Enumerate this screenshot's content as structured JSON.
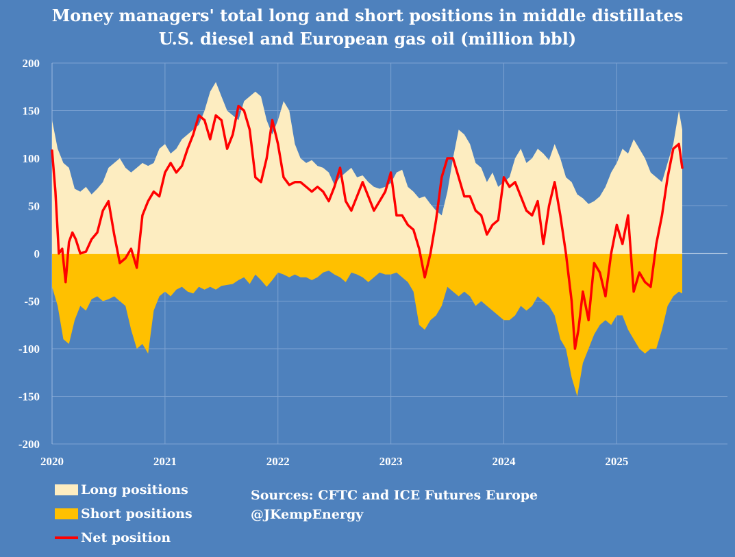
{
  "chart_data": {
    "type": "area",
    "title": "Money managers' total long and short positions in middle distillates",
    "subtitle": "U.S. diesel and European gas oil  (million bbl)",
    "xlabel": "",
    "ylabel": "",
    "xlim": [
      2020.0,
      2025.98
    ],
    "ylim": [
      -200,
      200
    ],
    "yticks": [
      "200",
      "150",
      "100",
      "50",
      "0",
      "-50",
      "-100",
      "-150",
      "-200"
    ],
    "xticks": [
      "2020",
      "2021",
      "2022",
      "2023",
      "2024",
      "2025"
    ],
    "grid": true,
    "legend_position": "bottom-left",
    "colors": {
      "long": "#fdedc1",
      "short": "#ffc000",
      "net": "#ff0000",
      "background": "#4e81bd"
    },
    "series": [
      {
        "name": "Long positions",
        "x": [
          2020.0,
          2020.05,
          2020.1,
          2020.15,
          2020.2,
          2020.25,
          2020.3,
          2020.35,
          2020.4,
          2020.45,
          2020.5,
          2020.55,
          2020.6,
          2020.65,
          2020.7,
          2020.75,
          2020.8,
          2020.85,
          2020.9,
          2020.95,
          2021.0,
          2021.05,
          2021.1,
          2021.15,
          2021.2,
          2021.25,
          2021.3,
          2021.35,
          2021.4,
          2021.45,
          2021.5,
          2021.55,
          2021.6,
          2021.65,
          2021.7,
          2021.75,
          2021.8,
          2021.85,
          2021.9,
          2021.95,
          2022.0,
          2022.05,
          2022.1,
          2022.15,
          2022.2,
          2022.25,
          2022.3,
          2022.35,
          2022.4,
          2022.45,
          2022.5,
          2022.55,
          2022.6,
          2022.65,
          2022.7,
          2022.75,
          2022.8,
          2022.85,
          2022.9,
          2022.95,
          2023.0,
          2023.05,
          2023.1,
          2023.15,
          2023.2,
          2023.25,
          2023.3,
          2023.35,
          2023.4,
          2023.45,
          2023.5,
          2023.55,
          2023.6,
          2023.65,
          2023.7,
          2023.75,
          2023.8,
          2023.85,
          2023.9,
          2023.95,
          2024.0,
          2024.05,
          2024.1,
          2024.15,
          2024.2,
          2024.25,
          2024.3,
          2024.35,
          2024.4,
          2024.45,
          2024.5,
          2024.55,
          2024.6,
          2024.65,
          2024.7,
          2024.75,
          2024.8,
          2024.85,
          2024.9,
          2024.95,
          2025.0,
          2025.05,
          2025.1,
          2025.15,
          2025.2,
          2025.25,
          2025.3,
          2025.35,
          2025.4,
          2025.45,
          2025.5,
          2025.55,
          2025.58
        ],
        "values": [
          140,
          110,
          95,
          90,
          68,
          65,
          70,
          62,
          68,
          75,
          90,
          95,
          100,
          90,
          85,
          90,
          95,
          92,
          95,
          110,
          115,
          105,
          110,
          120,
          125,
          130,
          135,
          150,
          170,
          180,
          165,
          150,
          145,
          140,
          160,
          165,
          170,
          165,
          140,
          125,
          140,
          160,
          150,
          115,
          100,
          95,
          98,
          92,
          90,
          85,
          72,
          80,
          85,
          90,
          80,
          82,
          75,
          70,
          68,
          70,
          74,
          85,
          88,
          70,
          65,
          58,
          60,
          52,
          45,
          40,
          65,
          100,
          130,
          125,
          115,
          95,
          90,
          75,
          85,
          70,
          75,
          80,
          100,
          110,
          95,
          100,
          110,
          105,
          98,
          115,
          100,
          80,
          75,
          62,
          58,
          52,
          55,
          60,
          70,
          85,
          95,
          110,
          105,
          120,
          110,
          100,
          85,
          80,
          75,
          95,
          115,
          150,
          130
        ]
      },
      {
        "name": "Short positions",
        "x": [
          2020.0,
          2020.05,
          2020.1,
          2020.15,
          2020.2,
          2020.25,
          2020.3,
          2020.35,
          2020.4,
          2020.45,
          2020.5,
          2020.55,
          2020.6,
          2020.65,
          2020.7,
          2020.75,
          2020.8,
          2020.85,
          2020.9,
          2020.95,
          2021.0,
          2021.05,
          2021.1,
          2021.15,
          2021.2,
          2021.25,
          2021.3,
          2021.35,
          2021.4,
          2021.45,
          2021.5,
          2021.55,
          2021.6,
          2021.65,
          2021.7,
          2021.75,
          2021.8,
          2021.85,
          2021.9,
          2021.95,
          2022.0,
          2022.05,
          2022.1,
          2022.15,
          2022.2,
          2022.25,
          2022.3,
          2022.35,
          2022.4,
          2022.45,
          2022.5,
          2022.55,
          2022.6,
          2022.65,
          2022.7,
          2022.75,
          2022.8,
          2022.85,
          2022.9,
          2022.95,
          2023.0,
          2023.05,
          2023.1,
          2023.15,
          2023.2,
          2023.25,
          2023.3,
          2023.35,
          2023.4,
          2023.45,
          2023.5,
          2023.55,
          2023.6,
          2023.65,
          2023.7,
          2023.75,
          2023.8,
          2023.85,
          2023.9,
          2023.95,
          2024.0,
          2024.05,
          2024.1,
          2024.15,
          2024.2,
          2024.25,
          2024.3,
          2024.35,
          2024.4,
          2024.45,
          2024.5,
          2024.55,
          2024.6,
          2024.65,
          2024.7,
          2024.75,
          2024.8,
          2024.85,
          2024.9,
          2024.95,
          2025.0,
          2025.05,
          2025.1,
          2025.15,
          2025.2,
          2025.25,
          2025.3,
          2025.35,
          2025.4,
          2025.45,
          2025.5,
          2025.55,
          2025.58
        ],
        "values": [
          -35,
          -55,
          -90,
          -95,
          -70,
          -55,
          -60,
          -48,
          -45,
          -50,
          -48,
          -45,
          -50,
          -55,
          -80,
          -100,
          -95,
          -105,
          -60,
          -45,
          -40,
          -45,
          -38,
          -35,
          -40,
          -42,
          -35,
          -38,
          -35,
          -38,
          -34,
          -33,
          -32,
          -28,
          -25,
          -32,
          -22,
          -28,
          -35,
          -28,
          -20,
          -22,
          -25,
          -22,
          -25,
          -25,
          -28,
          -25,
          -20,
          -18,
          -22,
          -25,
          -30,
          -20,
          -22,
          -25,
          -30,
          -25,
          -20,
          -22,
          -22,
          -20,
          -25,
          -30,
          -40,
          -75,
          -80,
          -70,
          -65,
          -55,
          -35,
          -40,
          -45,
          -40,
          -45,
          -55,
          -50,
          -55,
          -60,
          -65,
          -70,
          -70,
          -65,
          -55,
          -60,
          -55,
          -45,
          -50,
          -55,
          -65,
          -90,
          -100,
          -130,
          -150,
          -115,
          -100,
          -85,
          -75,
          -70,
          -75,
          -65,
          -65,
          -80,
          -90,
          -100,
          -105,
          -100,
          -100,
          -80,
          -55,
          -45,
          -40,
          -42
        ]
      },
      {
        "name": "Net position",
        "x": [
          2020.0,
          2020.03,
          2020.06,
          2020.09,
          2020.12,
          2020.15,
          2020.18,
          2020.21,
          2020.25,
          2020.3,
          2020.35,
          2020.4,
          2020.45,
          2020.5,
          2020.55,
          2020.6,
          2020.65,
          2020.7,
          2020.75,
          2020.8,
          2020.85,
          2020.9,
          2020.95,
          2021.0,
          2021.05,
          2021.1,
          2021.15,
          2021.2,
          2021.25,
          2021.3,
          2021.35,
          2021.4,
          2021.45,
          2021.5,
          2021.55,
          2021.6,
          2021.65,
          2021.7,
          2021.75,
          2021.8,
          2021.85,
          2021.9,
          2021.95,
          2022.0,
          2022.05,
          2022.1,
          2022.15,
          2022.2,
          2022.25,
          2022.3,
          2022.35,
          2022.4,
          2022.45,
          2022.5,
          2022.55,
          2022.6,
          2022.65,
          2022.7,
          2022.75,
          2022.8,
          2022.85,
          2022.9,
          2022.95,
          2023.0,
          2023.05,
          2023.1,
          2023.15,
          2023.2,
          2023.25,
          2023.3,
          2023.35,
          2023.4,
          2023.45,
          2023.5,
          2023.55,
          2023.6,
          2023.65,
          2023.7,
          2023.75,
          2023.8,
          2023.85,
          2023.9,
          2023.95,
          2024.0,
          2024.05,
          2024.1,
          2024.15,
          2024.2,
          2024.25,
          2024.3,
          2024.35,
          2024.4,
          2024.45,
          2024.5,
          2024.55,
          2024.6,
          2024.63,
          2024.66,
          2024.7,
          2024.75,
          2024.8,
          2024.85,
          2024.9,
          2024.95,
          2025.0,
          2025.05,
          2025.1,
          2025.15,
          2025.2,
          2025.25,
          2025.3,
          2025.35,
          2025.4,
          2025.45,
          2025.5,
          2025.55,
          2025.58
        ],
        "values": [
          108,
          65,
          0,
          5,
          -30,
          12,
          22,
          15,
          0,
          2,
          15,
          22,
          45,
          55,
          20,
          -10,
          -5,
          5,
          -15,
          40,
          55,
          65,
          60,
          85,
          95,
          85,
          92,
          110,
          125,
          145,
          140,
          120,
          145,
          140,
          110,
          125,
          155,
          150,
          130,
          80,
          75,
          100,
          140,
          115,
          80,
          72,
          75,
          75,
          70,
          65,
          70,
          65,
          55,
          70,
          90,
          55,
          45,
          60,
          75,
          60,
          45,
          55,
          65,
          85,
          40,
          40,
          30,
          25,
          5,
          -25,
          0,
          35,
          80,
          100,
          100,
          80,
          60,
          60,
          45,
          40,
          20,
          30,
          35,
          80,
          70,
          75,
          60,
          45,
          40,
          55,
          10,
          50,
          75,
          40,
          0,
          -50,
          -100,
          -80,
          -40,
          -70,
          -10,
          -20,
          -45,
          0,
          30,
          10,
          40,
          -40,
          -20,
          -30,
          -35,
          10,
          40,
          80,
          110,
          115,
          90
        ]
      }
    ]
  },
  "legend": {
    "items": [
      {
        "label": "Long positions",
        "color": "#fdedc1"
      },
      {
        "label": "Short positions",
        "color": "#ffc000"
      },
      {
        "label": "Net position",
        "color": "#ff0000"
      }
    ]
  },
  "sources": {
    "line1": "Sources: CFTC and ICE Futures Europe",
    "line2": "@JKempEnergy"
  }
}
